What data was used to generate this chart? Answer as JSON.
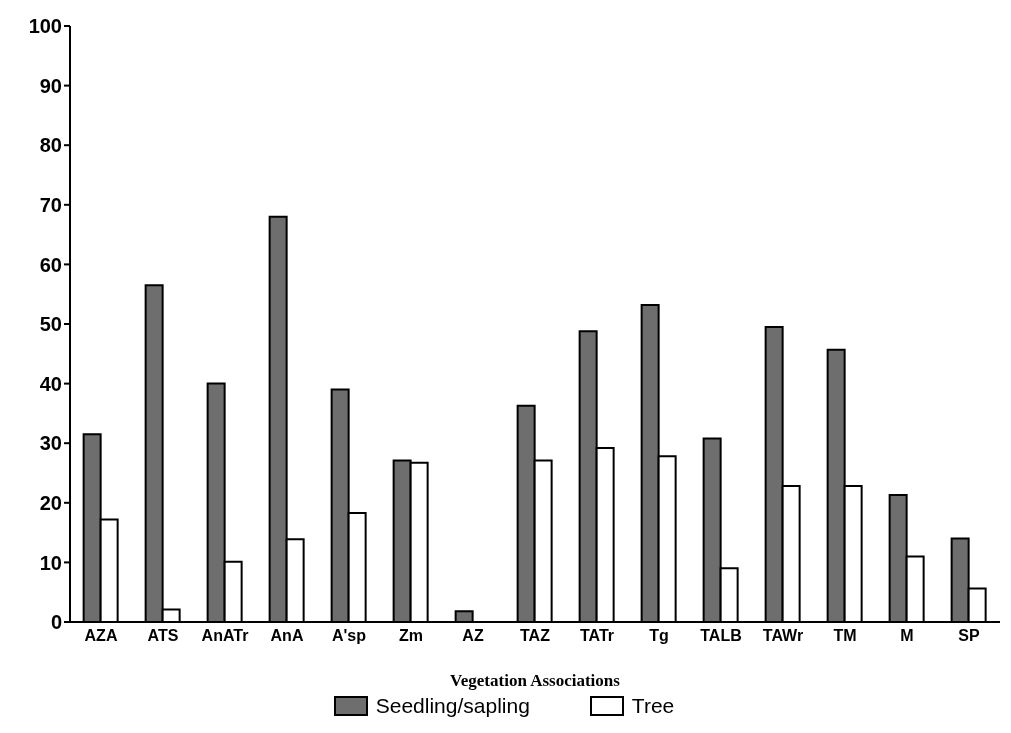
{
  "chart_data": {
    "type": "bar",
    "xlabel": "Vegetation Associations",
    "categories": [
      "AZA",
      "ATS",
      "AnATr",
      "AnA",
      "A'sp",
      "Zm",
      "AZ",
      "TAZ",
      "TATr",
      "Tg",
      "TALB",
      "TAWr",
      "TM",
      "M",
      "SP"
    ],
    "series": [
      {
        "name": "Seedling/sapling",
        "color": "#6e6e6e",
        "values": [
          31.5,
          56.5,
          40,
          68,
          39,
          27.1,
          1.8,
          36.3,
          48.8,
          53.2,
          30.8,
          49.5,
          45.7,
          21.3,
          14
        ]
      },
      {
        "name": "Tree",
        "color": "#ffffff",
        "values": [
          17.2,
          2.1,
          10.1,
          13.9,
          18.3,
          26.7,
          0,
          27.1,
          29.2,
          27.8,
          9,
          22.8,
          22.8,
          11,
          5.6
        ]
      }
    ],
    "ylim": [
      0,
      100
    ],
    "yticks": [
      0,
      10,
      20,
      30,
      40,
      50,
      60,
      70,
      80,
      90,
      100
    ],
    "grid": false,
    "legend": "bottom"
  }
}
